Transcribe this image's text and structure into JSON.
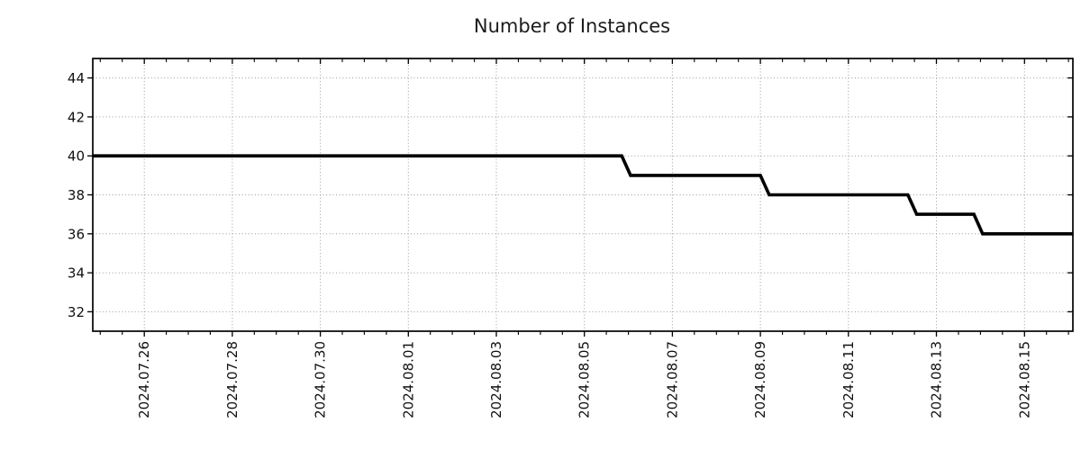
{
  "chart_data": {
    "type": "line",
    "title": "Number of Instances",
    "line_style": "step",
    "legend": "none",
    "grid": "dotted gray, at major ticks",
    "colors": {
      "line": "#000000",
      "grid": "#9a9a9a",
      "text": "#111111",
      "background": "#ffffff"
    },
    "x_axis": {
      "unit_note": "numeric t = days since 2024-07-24 00:00, labels are dates",
      "range": [
        0.83,
        23.1
      ],
      "tick_values": [
        2,
        4,
        6,
        8,
        10,
        12,
        14,
        16,
        18,
        20,
        22
      ],
      "tick_labels": [
        "2024.07.26",
        "2024.07.28",
        "2024.07.30",
        "2024.08.01",
        "2024.08.03",
        "2024.08.05",
        "2024.08.07",
        "2024.08.09",
        "2024.08.11",
        "2024.08.13",
        "2024.08.15"
      ],
      "minor_tick_step": 0.5,
      "label_rotation_deg": 90
    },
    "y_axis": {
      "range": [
        31,
        45
      ],
      "tick_values": [
        32,
        34,
        36,
        38,
        40,
        42,
        44
      ]
    },
    "series": [
      {
        "name": "instances",
        "color": "#000000",
        "points": [
          [
            0.83,
            40
          ],
          [
            12.85,
            40
          ],
          [
            13.05,
            39
          ],
          [
            16.0,
            39
          ],
          [
            16.2,
            38
          ],
          [
            19.35,
            38
          ],
          [
            19.55,
            37
          ],
          [
            20.85,
            37
          ],
          [
            21.05,
            36
          ],
          [
            23.1,
            36
          ]
        ]
      }
    ],
    "readings": {
      "start_value": 40,
      "end_value": 36,
      "steps": [
        {
          "approx_date": "2024.08.06",
          "from": 40,
          "to": 39
        },
        {
          "approx_date": "2024.08.09",
          "from": 39,
          "to": 38
        },
        {
          "approx_date": "2024.08.12",
          "from": 38,
          "to": 37
        },
        {
          "approx_date": "2024.08.14",
          "from": 37,
          "to": 36
        }
      ]
    }
  }
}
